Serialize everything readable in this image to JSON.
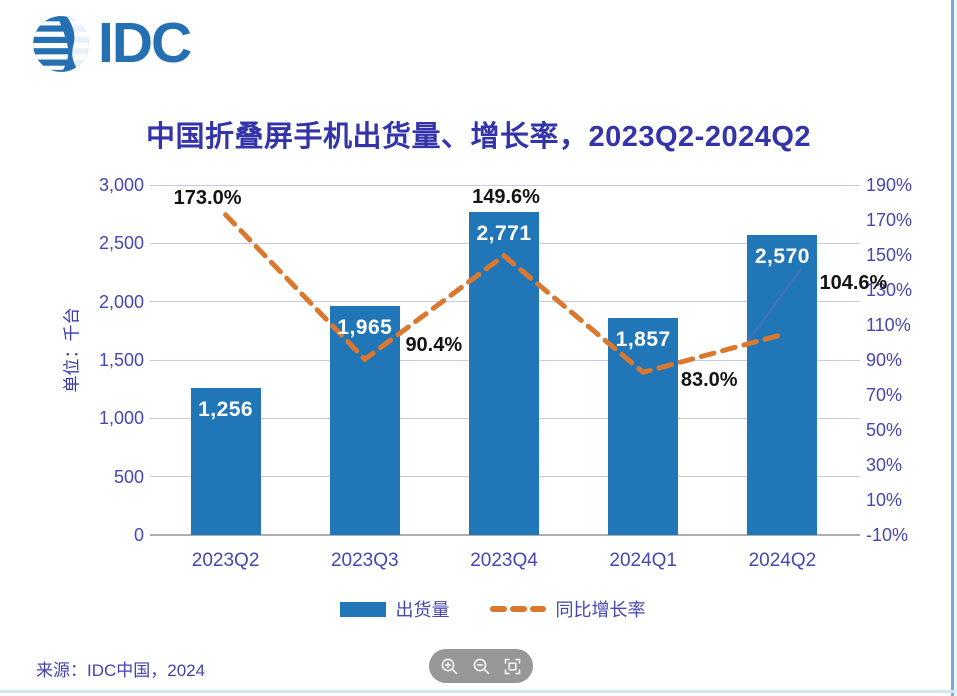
{
  "logo": {
    "label": "IDC"
  },
  "source": {
    "text": "来源：IDC中国，2024"
  },
  "chart_data": {
    "type": "bar",
    "title": "中国折叠屏手机出货量、增长率，2023Q2-2024Q2",
    "categories": [
      "2023Q2",
      "2023Q3",
      "2023Q4",
      "2024Q1",
      "2024Q2"
    ],
    "series": [
      {
        "name": "出货量",
        "type": "bar",
        "values": [
          1256,
          1965,
          2771,
          1857,
          2570
        ],
        "value_labels": [
          "1,256",
          "1,965",
          "2,771",
          "1,857",
          "2,570"
        ],
        "color": "#2176b8"
      },
      {
        "name": "同比增长率",
        "type": "line",
        "style": "dashed",
        "values": [
          173.0,
          90.4,
          149.6,
          83.0,
          104.6
        ],
        "value_labels": [
          "173.0%",
          "90.4%",
          "149.6%",
          "83.0%",
          "104.6%"
        ],
        "color": "#d9782e"
      }
    ],
    "left_axis": {
      "title": "单位：千台",
      "min": 0,
      "max": 3000,
      "tick_step": 500,
      "tick_labels": [
        "3,000",
        "2,500",
        "2,000",
        "1,500",
        "1,000",
        "500",
        "0"
      ]
    },
    "right_axis": {
      "min": -10,
      "max": 190,
      "tick_step": 20,
      "tick_labels": [
        "190%",
        "170%",
        "150%",
        "130%",
        "110%",
        "90%",
        "70%",
        "50%",
        "30%",
        "10%",
        "-10%"
      ]
    },
    "grid": true,
    "legend_position": "bottom-center"
  },
  "viewer_toolbar": {
    "buttons": [
      {
        "name": "zoom-in"
      },
      {
        "name": "zoom-out"
      },
      {
        "name": "fit-to-screen"
      }
    ]
  },
  "colors": {
    "bar": "#2176b8",
    "line": "#d9782e",
    "title_text": "#3333aa",
    "axis_text": "#4646b4",
    "gridline": "#c9c9e3",
    "logo_blue": "#2470b3"
  }
}
